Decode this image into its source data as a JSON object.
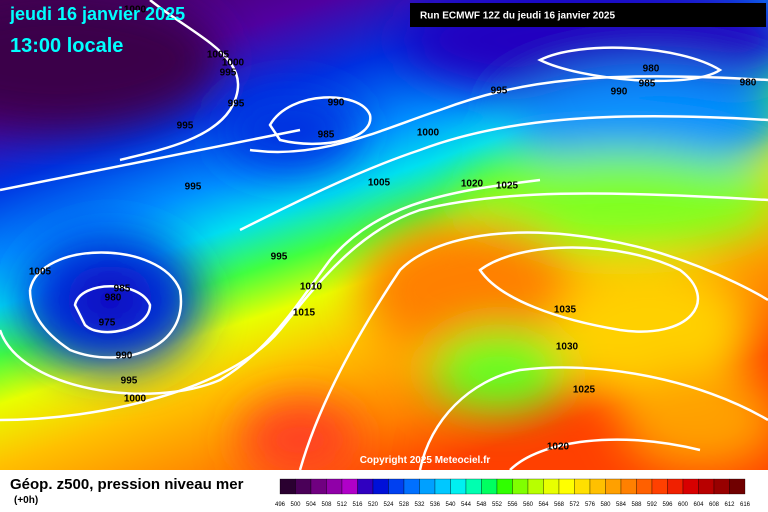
{
  "header": {
    "date": "jeudi 16 janvier 2025",
    "time": "13:00 locale",
    "run": "Run ECMWF 12Z du jeudi 16 janvier 2025"
  },
  "copyright": "Copyright 2025 Meteociel.fr",
  "footer": {
    "title": "Géop. z500, pression niveau mer",
    "step": "(+0h)"
  },
  "isobars": [
    "1000",
    "1005",
    "1000",
    "995",
    "995",
    "995",
    "995",
    "990",
    "985",
    "1000",
    "995",
    "980",
    "985",
    "990",
    "980",
    "1005",
    "1020",
    "1025",
    "995",
    "1005",
    "985",
    "980",
    "975",
    "1010",
    "1015",
    "990",
    "995",
    "1000",
    "1035",
    "1030",
    "1025",
    "1020"
  ],
  "scale": {
    "labels": [
      "496",
      "500",
      "504",
      "508",
      "512",
      "516",
      "520",
      "524",
      "528",
      "532",
      "536",
      "540",
      "544",
      "548",
      "552",
      "556",
      "560",
      "564",
      "568",
      "572",
      "576",
      "580",
      "584",
      "588",
      "592",
      "596",
      "600",
      "604",
      "608",
      "612",
      "616"
    ],
    "colors": [
      "#2a0030",
      "#4a0058",
      "#700080",
      "#9000a8",
      "#b000c8",
      "#3000c0",
      "#0010d8",
      "#0040f0",
      "#0070ff",
      "#00a0ff",
      "#00c8ff",
      "#00f0f0",
      "#00ffb0",
      "#00ff60",
      "#30ff00",
      "#80ff00",
      "#b8ff00",
      "#e8ff00",
      "#ffff00",
      "#ffe000",
      "#ffc000",
      "#ffa000",
      "#ff8000",
      "#ff6000",
      "#ff4000",
      "#f02000",
      "#d80000",
      "#b80000",
      "#980000",
      "#700000"
    ]
  }
}
